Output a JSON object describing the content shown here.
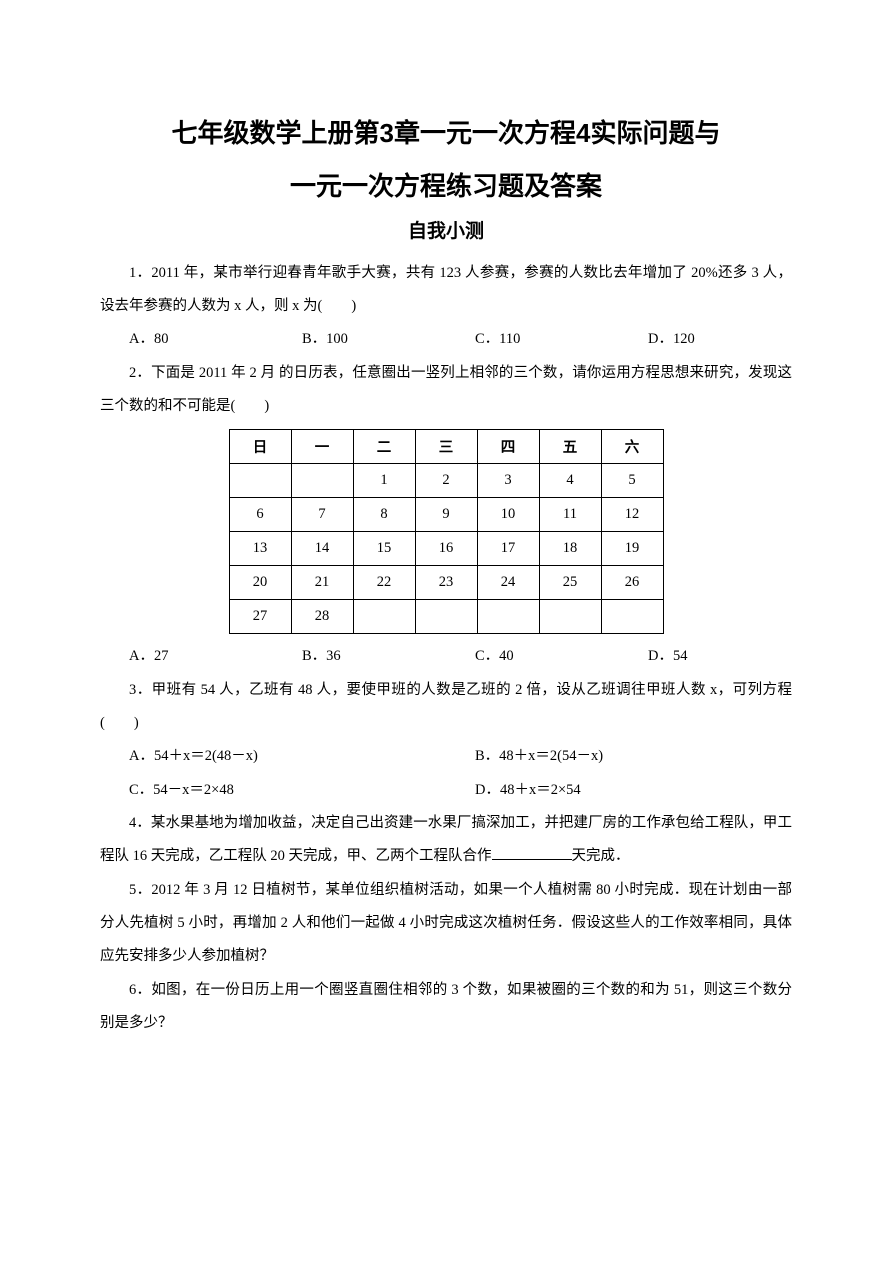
{
  "title_line1": "七年级数学上册第3章一元一次方程4实际问题与",
  "title_line2": "一元一次方程练习题及答案",
  "subtitle": "自我小测",
  "q1": {
    "text": "1．2011 年，某市举行迎春青年歌手大赛，共有 123 人参赛，参赛的人数比去年增加了 20%还多 3 人，设去年参赛的人数为 x 人，则 x 为(　　)",
    "optA": "A．80",
    "optB": "B．100",
    "optC": "C．110",
    "optD": "D．120"
  },
  "q2": {
    "text_a": "2．下面是 2011 年 2 月 的日历表，任意圈出一竖列上相邻的三个数，请你运用方程思想来研究，发现这三个数的和不可能是(　　)",
    "headers": [
      "日",
      "一",
      "二",
      "三",
      "四",
      "五",
      "六"
    ],
    "rows": [
      [
        "",
        "",
        "1",
        "2",
        "3",
        "4",
        "5"
      ],
      [
        "6",
        "7",
        "8",
        "9",
        "10",
        "11",
        "12"
      ],
      [
        "13",
        "14",
        "15",
        "16",
        "17",
        "18",
        "19"
      ],
      [
        "20",
        "21",
        "22",
        "23",
        "24",
        "25",
        "26"
      ],
      [
        "27",
        "28",
        "",
        "",
        "",
        "",
        ""
      ]
    ],
    "optA": "A．27",
    "optB": "B．36",
    "optC": "C．40",
    "optD": "D．54"
  },
  "q3": {
    "text": "3．甲班有 54 人，乙班有 48 人，要使甲班的人数是乙班的 2 倍，设从乙班调往甲班人数 x，可列方程(　　)",
    "optA": "A．54＋x＝2(48－x)",
    "optB": "B．48＋x＝2(54－x)",
    "optC": "C．54－x＝2×48",
    "optD": "D．48＋x＝2×54"
  },
  "q4": {
    "text_before": "4．某水果基地为增加收益，决定自己出资建一水果厂搞深加工，并把建厂房的工作承包给工程队，甲工程队 16 天完成，乙工程队 20 天完成，甲、乙两个工程队合作",
    "text_after": "天完成．"
  },
  "q5": {
    "text": "5．2012 年 3 月 12 日植树节，某单位组织植树活动，如果一个人植树需 80 小时完成．现在计划由一部分人先植树 5 小时，再增加 2 人和他们一起做 4 小时完成这次植树任务．假设这些人的工作效率相同，具体应先安排多少人参加植树？"
  },
  "q6": {
    "text": "6．如图，在一份日历上用一个圈竖直圈住相邻的 3 个数，如果被圈的三个数的和为 51，则这三个数分别是多少？"
  },
  "colors": {
    "text": "#000000",
    "background": "#ffffff",
    "border": "#000000"
  },
  "typography": {
    "title_fontsize": 26,
    "subtitle_fontsize": 19,
    "body_fontsize": 14.5,
    "line_height": 2.3
  }
}
